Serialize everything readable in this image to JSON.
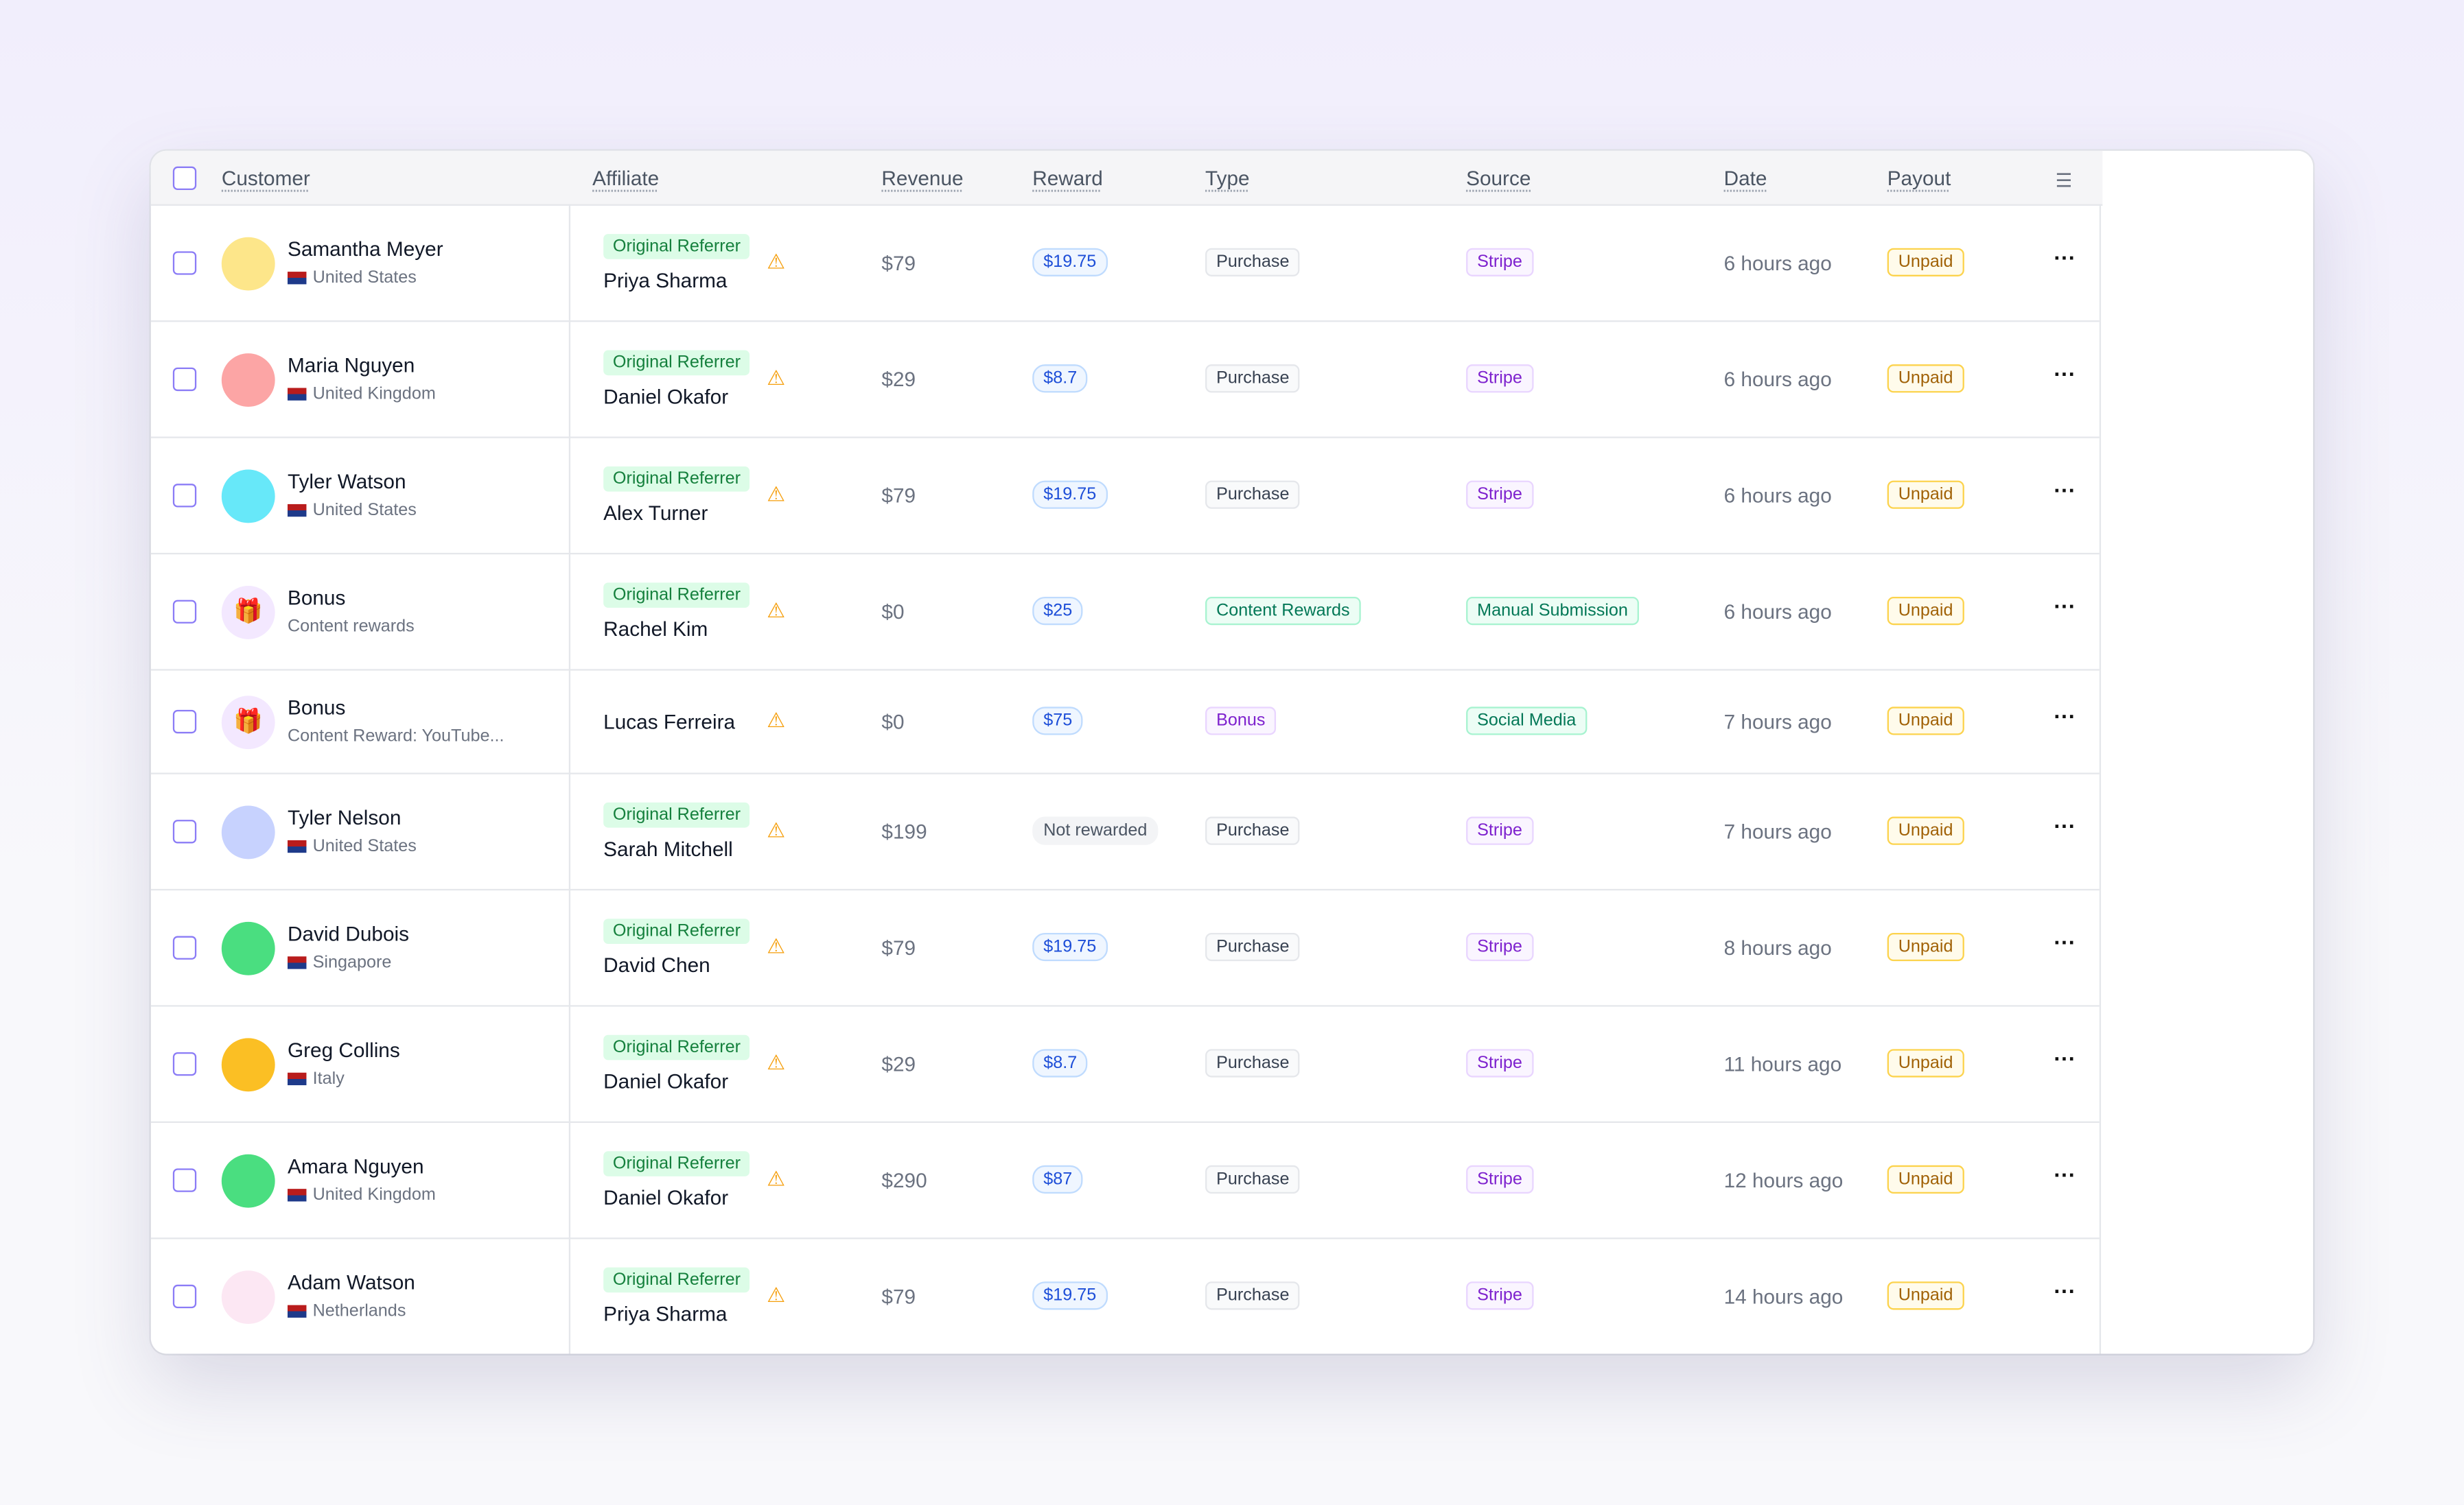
{
  "table": {
    "columns": [
      "Customer",
      "Affiliate",
      "Revenue",
      "Reward",
      "Type",
      "Source",
      "Date",
      "Payout"
    ],
    "rows": [
      {
        "customer": "Samantha Meyer",
        "detail": "United States",
        "avatar_color": "#fde68a",
        "tag": "Original Referrer",
        "affiliate": "Priya Sharma",
        "revenue": "$79",
        "reward": "$19.75",
        "type": "Purchase",
        "type_tone": "gray",
        "source": "Stripe",
        "source_tone": "purple",
        "date": "6 hours ago",
        "payout": "Unpaid"
      },
      {
        "customer": "Maria Nguyen",
        "detail": "United Kingdom",
        "avatar_color": "#fca5a5",
        "tag": "Original Referrer",
        "affiliate": "Daniel Okafor",
        "revenue": "$29",
        "reward": "$8.7",
        "type": "Purchase",
        "type_tone": "gray",
        "source": "Stripe",
        "source_tone": "purple",
        "date": "6 hours ago",
        "payout": "Unpaid"
      },
      {
        "customer": "Tyler Watson",
        "detail": "United States",
        "avatar_color": "#67e8f9",
        "tag": "Original Referrer",
        "affiliate": "Alex Turner",
        "revenue": "$79",
        "reward": "$19.75",
        "type": "Purchase",
        "type_tone": "gray",
        "source": "Stripe",
        "source_tone": "purple",
        "date": "6 hours ago",
        "payout": "Unpaid"
      },
      {
        "customer": "Bonus",
        "detail": "Content rewards",
        "avatar_color": "#f3e8ff",
        "tag": "Original Referrer",
        "affiliate": "Rachel Kim",
        "revenue": "$0",
        "reward": "$25",
        "type": "Content Rewards",
        "type_tone": "green",
        "source": "Manual Submission",
        "source_tone": "green",
        "date": "6 hours ago",
        "payout": "Unpaid"
      },
      {
        "customer": "Bonus",
        "detail": "Content Reward: YouTube...",
        "avatar_color": "#f3e8ff",
        "affiliate": "Lucas Ferreira",
        "revenue": "$0",
        "reward": "$75",
        "type": "Bonus",
        "type_tone": "purple",
        "source": "Social Media",
        "source_tone": "green",
        "date": "7 hours ago",
        "payout": "Unpaid"
      },
      {
        "customer": "Tyler Nelson",
        "detail": "United States",
        "avatar_color": "#c7d2fe",
        "tag": "Original Referrer",
        "affiliate": "Sarah Mitchell",
        "revenue": "$199",
        "reward": "Not rewarded",
        "type": "Purchase",
        "type_tone": "gray",
        "source": "Stripe",
        "source_tone": "purple",
        "date": "7 hours ago",
        "payout": "Unpaid"
      },
      {
        "customer": "David Dubois",
        "detail": "Singapore",
        "avatar_color": "#4ade80",
        "tag": "Original Referrer",
        "affiliate": "David Chen",
        "revenue": "$79",
        "reward": "$19.75",
        "type": "Purchase",
        "type_tone": "gray",
        "source": "Stripe",
        "source_tone": "purple",
        "date": "8 hours ago",
        "payout": "Unpaid"
      },
      {
        "customer": "Greg Collins",
        "detail": "Italy",
        "avatar_color": "#fbbf24",
        "tag": "Original Referrer",
        "affiliate": "Daniel Okafor",
        "revenue": "$29",
        "reward": "$8.7",
        "type": "Purchase",
        "type_tone": "gray",
        "source": "Stripe",
        "source_tone": "purple",
        "date": "11 hours ago",
        "payout": "Unpaid"
      },
      {
        "customer": "Amara Nguyen",
        "detail": "United Kingdom",
        "avatar_color": "#4ade80",
        "tag": "Original Referrer",
        "affiliate": "Daniel Okafor",
        "revenue": "$290",
        "reward": "$87",
        "type": "Purchase",
        "type_tone": "gray",
        "source": "Stripe",
        "source_tone": "purple",
        "date": "12 hours ago",
        "payout": "Unpaid"
      },
      {
        "customer": "Adam Watson",
        "detail": "Netherlands",
        "avatar_color": "#fce7f3",
        "tag": "Original Referrer",
        "affiliate": "Priya Sharma",
        "revenue": "$79",
        "reward": "$19.75",
        "type": "Purchase",
        "type_tone": "gray",
        "source": "Stripe",
        "source_tone": "purple",
        "date": "14 hours ago",
        "payout": "Unpaid"
      }
    ]
  }
}
